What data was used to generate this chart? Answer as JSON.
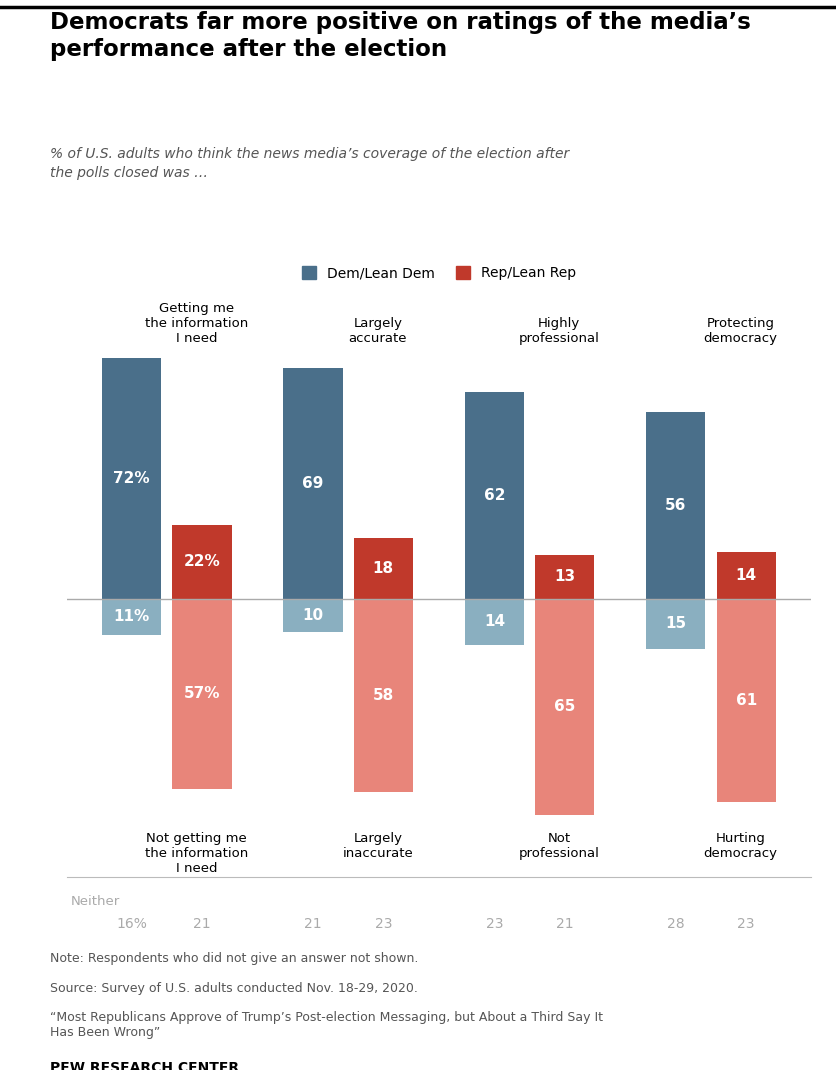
{
  "title": "Democrats far more positive on ratings of the media’s\nperformance after the election",
  "subtitle": "% of U.S. adults who think the news media’s coverage of the election after\nthe polls closed was …",
  "categories": [
    "Getting me\nthe information\nI need",
    "Largely\naccurate",
    "Highly\nprofessional",
    "Protecting\ndemocracy"
  ],
  "neg_labels": [
    "Not getting me\nthe information\nI need",
    "Largely\ninaccurate",
    "Not\nprofessional",
    "Hurting\ndemocracy"
  ],
  "dem_positive": [
    72,
    69,
    62,
    56
  ],
  "rep_positive": [
    22,
    18,
    13,
    14
  ],
  "dem_negative": [
    11,
    10,
    14,
    15
  ],
  "rep_negative": [
    57,
    58,
    65,
    61
  ],
  "neither_dem": [
    16,
    21,
    23,
    28
  ],
  "neither_rep": [
    21,
    23,
    21,
    23
  ],
  "dem_color_pos": "#4a6f8a",
  "rep_color_pos": "#c0392b",
  "dem_color_neg": "#8aafc0",
  "rep_color_neg": "#e8857a",
  "legend_dem": "Dem/Lean Dem",
  "legend_rep": "Rep/Lean Rep",
  "note_line1": "Note: Respondents who did not give an answer not shown.",
  "note_line2": "Source: Survey of U.S. adults conducted Nov. 18-29, 2020.",
  "note_line3": "“Most Republicans Approve of Trump’s Post-election Messaging, but About a Third Say It\nHas Been Wrong”",
  "source_label": "PEW RESEARCH CENTER",
  "background_color": "#ffffff"
}
